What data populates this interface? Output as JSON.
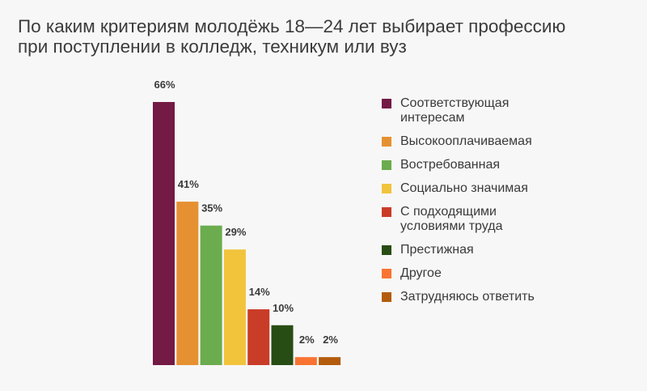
{
  "title_lines": [
    "По каким критериям молодёжь 18—24 лет выбирает профессию",
    "при поступлении в колледж, техникум или вуз"
  ],
  "chart_data": {
    "type": "bar",
    "title": "По каким критериям молодёжь 18—24 лет выбирает профессию при поступлении в колледж, техникум или вуз",
    "categories": [
      "Соответствующая интересам",
      "Высокооплачиваемая",
      "Востребованная",
      "Социально значимая",
      "С подходящими условиями труда",
      "Престижная",
      "Другое",
      "Затрудняюсь ответить"
    ],
    "values": [
      66,
      41,
      35,
      29,
      14,
      10,
      2,
      2
    ],
    "value_labels": [
      "66%",
      "41%",
      "35%",
      "29%",
      "14%",
      "10%",
      "2%",
      "2%"
    ],
    "colors": [
      "#731a45",
      "#e69131",
      "#6aac4e",
      "#f2c43c",
      "#c93c27",
      "#284d14",
      "#f97432",
      "#b35c0d"
    ],
    "ylim": [
      0,
      66
    ],
    "grid": false,
    "legend_position": "right"
  },
  "legend": [
    {
      "label_lines": [
        "Соответствующая",
        "интересам"
      ],
      "color": "#731a45"
    },
    {
      "label_lines": [
        "Высокооплачиваемая"
      ],
      "color": "#e69131"
    },
    {
      "label_lines": [
        "Востребованная"
      ],
      "color": "#6aac4e"
    },
    {
      "label_lines": [
        "Социально значимая"
      ],
      "color": "#f2c43c"
    },
    {
      "label_lines": [
        "С подходящими",
        "условиями труда"
      ],
      "color": "#c93c27"
    },
    {
      "label_lines": [
        "Престижная"
      ],
      "color": "#284d14"
    },
    {
      "label_lines": [
        "Другое"
      ],
      "color": "#f97432"
    },
    {
      "label_lines": [
        "Затрудняюсь ответить"
      ],
      "color": "#b35c0d"
    }
  ]
}
